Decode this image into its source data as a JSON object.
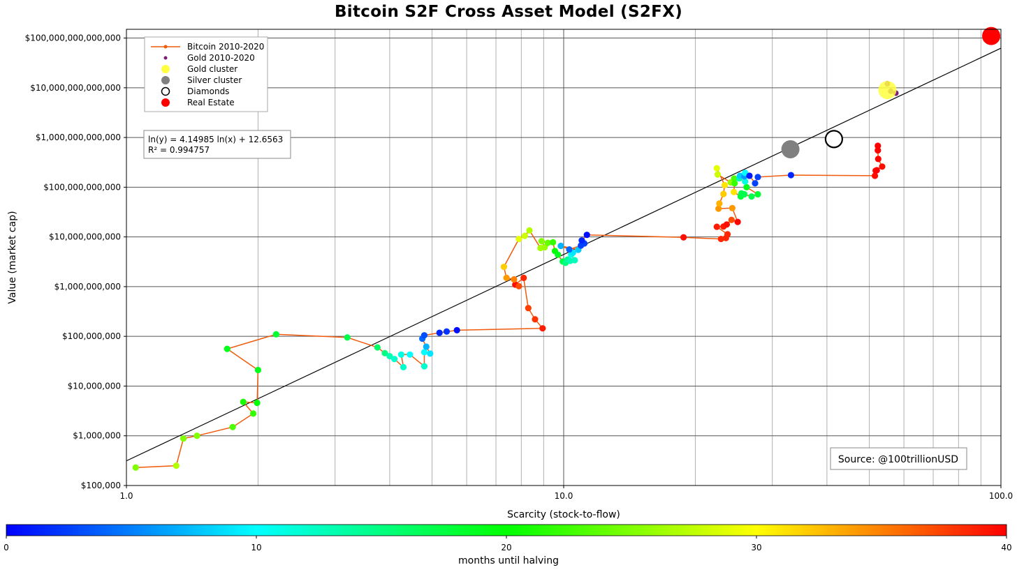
{
  "chart_data": {
    "type": "scatter",
    "title": "Bitcoin S2F Cross Asset Model (S2FX)",
    "xlabel": "Scarcity (stock-to-flow)",
    "ylabel": "Value (market cap)",
    "x_scale": "log",
    "y_scale": "log",
    "xlim": [
      1.0,
      100.0
    ],
    "ylim": [
      100000,
      150000000000000
    ],
    "x_ticks": [
      1.0,
      10.0,
      100.0
    ],
    "x_tick_labels": [
      "1.0",
      "10.0",
      "100.0"
    ],
    "y_ticks": [
      100000,
      1000000,
      10000000,
      100000000,
      1000000000,
      10000000000,
      100000000000,
      1000000000000,
      10000000000000,
      100000000000000
    ],
    "y_tick_labels": [
      "$100,000",
      "$1,000,000",
      "$10,000,000",
      "$100,000,000",
      "$1,000,000,000",
      "$10,000,000,000",
      "$100,000,000,000",
      "$1,000,000,000,000",
      "$10,000,000,000,000",
      "$100,000,000,000,000"
    ],
    "grid": true,
    "legend_position": "top-left",
    "legend": [
      {
        "label": "Bitcoin 2010-2020",
        "marker": "line-dot",
        "color": "#f05a0a"
      },
      {
        "label": "Gold 2010-2020",
        "marker": "small-dot",
        "color": "#7d1c7d"
      },
      {
        "label": "Gold cluster",
        "marker": "circle",
        "color": "#ffff40"
      },
      {
        "label": "Silver cluster",
        "marker": "circle",
        "color": "#808080"
      },
      {
        "label": "Diamonds",
        "marker": "hollow-circle",
        "color": "#000000"
      },
      {
        "label": "Real Estate",
        "marker": "circle",
        "color": "#ff0000"
      }
    ],
    "fit_annotation": [
      "ln(y) = 4.14985 ln(x) + 12.6563",
      "R² = 0.994757"
    ],
    "fit": {
      "a": 4.14985,
      "b": 12.6563
    },
    "source_annotation": "Source: @100trillionUSD",
    "colorbar": {
      "label": "months until halving",
      "range": [
        0,
        40
      ],
      "ticks": [
        0,
        10,
        20,
        30,
        40
      ],
      "tick_labels": [
        "0",
        "10",
        "20",
        "30",
        "40"
      ],
      "colors": [
        "#0000ff",
        "#00ffff",
        "#00ff00",
        "#ffff00",
        "#ff0000"
      ]
    },
    "series": [
      {
        "name": "Bitcoin 2010-2020",
        "line_color": "#f05a0a",
        "points": [
          [
            1.05,
            230000,
            25
          ],
          [
            1.3,
            250000,
            27
          ],
          [
            1.35,
            880000,
            25
          ],
          [
            1.45,
            1000000,
            25
          ],
          [
            1.75,
            1500000,
            23
          ],
          [
            1.95,
            2800000,
            22
          ],
          [
            1.85,
            4800000,
            21
          ],
          [
            1.99,
            4600000,
            20
          ],
          [
            2.0,
            21000000,
            19
          ],
          [
            1.7,
            56000000,
            19
          ],
          [
            2.2,
            110000000,
            18
          ],
          [
            3.2,
            95000000,
            17
          ],
          [
            3.75,
            60000000,
            16
          ],
          [
            3.9,
            46000000,
            15
          ],
          [
            4.0,
            40000000,
            13
          ],
          [
            4.1,
            35000000,
            12
          ],
          [
            4.3,
            24000000,
            12
          ],
          [
            4.25,
            43000000,
            11
          ],
          [
            4.45,
            43000000,
            10
          ],
          [
            4.8,
            25000000,
            12
          ],
          [
            4.8,
            48000000,
            10
          ],
          [
            4.95,
            45000000,
            9
          ],
          [
            4.85,
            62000000,
            7
          ],
          [
            4.75,
            90000000,
            4
          ],
          [
            4.8,
            105000000,
            3
          ],
          [
            5.4,
            125000000,
            2
          ],
          [
            5.2,
            118000000,
            1.5
          ],
          [
            5.7,
            133000000,
            0.5
          ],
          [
            8.95,
            145000000,
            39
          ],
          [
            8.6,
            220000000,
            38
          ],
          [
            8.3,
            370000000,
            37.5
          ],
          [
            8.1,
            1500000000,
            38.5
          ],
          [
            7.75,
            1100000000,
            39.5
          ],
          [
            7.9,
            1020000000,
            37
          ],
          [
            7.7,
            1400000000,
            35
          ],
          [
            7.4,
            1500000000,
            34
          ],
          [
            7.3,
            2500000000,
            32
          ],
          [
            7.9,
            9100000000,
            29
          ],
          [
            8.15,
            10500000000,
            28
          ],
          [
            8.35,
            13500000000,
            27
          ],
          [
            8.85,
            6000000000,
            26.5
          ],
          [
            9.05,
            6200000000,
            26
          ],
          [
            8.9,
            8200000000,
            25
          ],
          [
            9.2,
            7600000000,
            24
          ],
          [
            9.45,
            7800000000,
            22
          ],
          [
            9.55,
            5200000000,
            20
          ],
          [
            9.7,
            4400000000,
            19
          ],
          [
            9.95,
            3200000000,
            17
          ],
          [
            10.1,
            3000000000,
            15
          ],
          [
            10.2,
            3500000000,
            14
          ],
          [
            10.35,
            3300000000,
            13
          ],
          [
            10.6,
            3400000000,
            12.5
          ],
          [
            10.4,
            4400000000,
            10.5
          ],
          [
            10.5,
            4800000000,
            9
          ],
          [
            10.8,
            5500000000,
            8
          ],
          [
            9.85,
            6600000000,
            7
          ],
          [
            10.3,
            5600000000,
            4
          ],
          [
            10.95,
            6700000000,
            2.5
          ],
          [
            11.15,
            7400000000,
            2.5
          ],
          [
            11.0,
            8500000000,
            1.5
          ],
          [
            11.3,
            11000000000,
            0.5
          ],
          [
            18.8,
            9800000000,
            39.5
          ],
          [
            22.9,
            9100000000,
            38.5
          ],
          [
            23.5,
            9500000000,
            38.5
          ],
          [
            23.7,
            11300000000,
            38.5
          ],
          [
            22.4,
            16000000000,
            39
          ],
          [
            23.2,
            16200000000,
            39
          ],
          [
            23.6,
            17800000000,
            39.5
          ],
          [
            24.2,
            22000000000,
            37
          ],
          [
            25.0,
            20000000000,
            40
          ],
          [
            24.3,
            38000000000,
            34
          ],
          [
            22.6,
            37000000000,
            34
          ],
          [
            22.7,
            47000000000,
            33
          ],
          [
            23.2,
            73000000000,
            32
          ],
          [
            23.35,
            110000000000,
            31
          ],
          [
            22.4,
            240000000000,
            29
          ],
          [
            22.5,
            180000000000,
            28
          ],
          [
            24.1,
            125000000000,
            26
          ],
          [
            24.55,
            150000000000,
            23
          ],
          [
            24.6,
            120000000000,
            22
          ],
          [
            24.5,
            80000000000,
            31
          ],
          [
            25.4,
            65000000000,
            18
          ],
          [
            25.5,
            75000000000,
            17
          ],
          [
            25.9,
            72000000000,
            17
          ],
          [
            26.9,
            65000000000,
            17
          ],
          [
            27.8,
            72000000000,
            18
          ],
          [
            26.2,
            100000000000,
            19
          ],
          [
            26.0,
            130000000000,
            11
          ],
          [
            25.2,
            150000000000,
            13
          ],
          [
            25.3,
            170000000000,
            8
          ],
          [
            25.9,
            165000000000,
            6
          ],
          [
            26.0,
            195000000000,
            10
          ],
          [
            26.6,
            170000000000,
            1
          ],
          [
            27.4,
            120000000000,
            2.5
          ],
          [
            27.8,
            160000000000,
            2.5
          ],
          [
            33.1,
            175000000000,
            1.5
          ],
          [
            51.5,
            170000000000,
            39.5
          ],
          [
            51.7,
            215000000000,
            39.5
          ],
          [
            52.0,
            220000000000,
            40
          ],
          [
            53.5,
            260000000000,
            39.5
          ],
          [
            52.4,
            370000000000,
            40
          ],
          [
            52.3,
            550000000000,
            40
          ],
          [
            52.3,
            680000000000,
            40
          ]
        ]
      },
      {
        "name": "Gold 2010-2020",
        "color": "#7d1c7d",
        "points": [
          [
            55.0,
            12000000000000
          ],
          [
            57.5,
            7800000000000
          ],
          [
            56.0,
            8500000000000
          ]
        ]
      },
      {
        "name": "Gold cluster",
        "color": "#ffff40",
        "points": [
          [
            55.0,
            9000000000000
          ]
        ]
      },
      {
        "name": "Silver cluster",
        "color": "#808080",
        "points": [
          [
            33.0,
            580000000000
          ]
        ]
      },
      {
        "name": "Diamonds",
        "color": "#000000",
        "points": [
          [
            41.5,
            930000000000
          ]
        ]
      },
      {
        "name": "Real Estate",
        "color": "#ff0000",
        "points": [
          [
            95.0,
            110000000000000
          ]
        ]
      }
    ]
  }
}
